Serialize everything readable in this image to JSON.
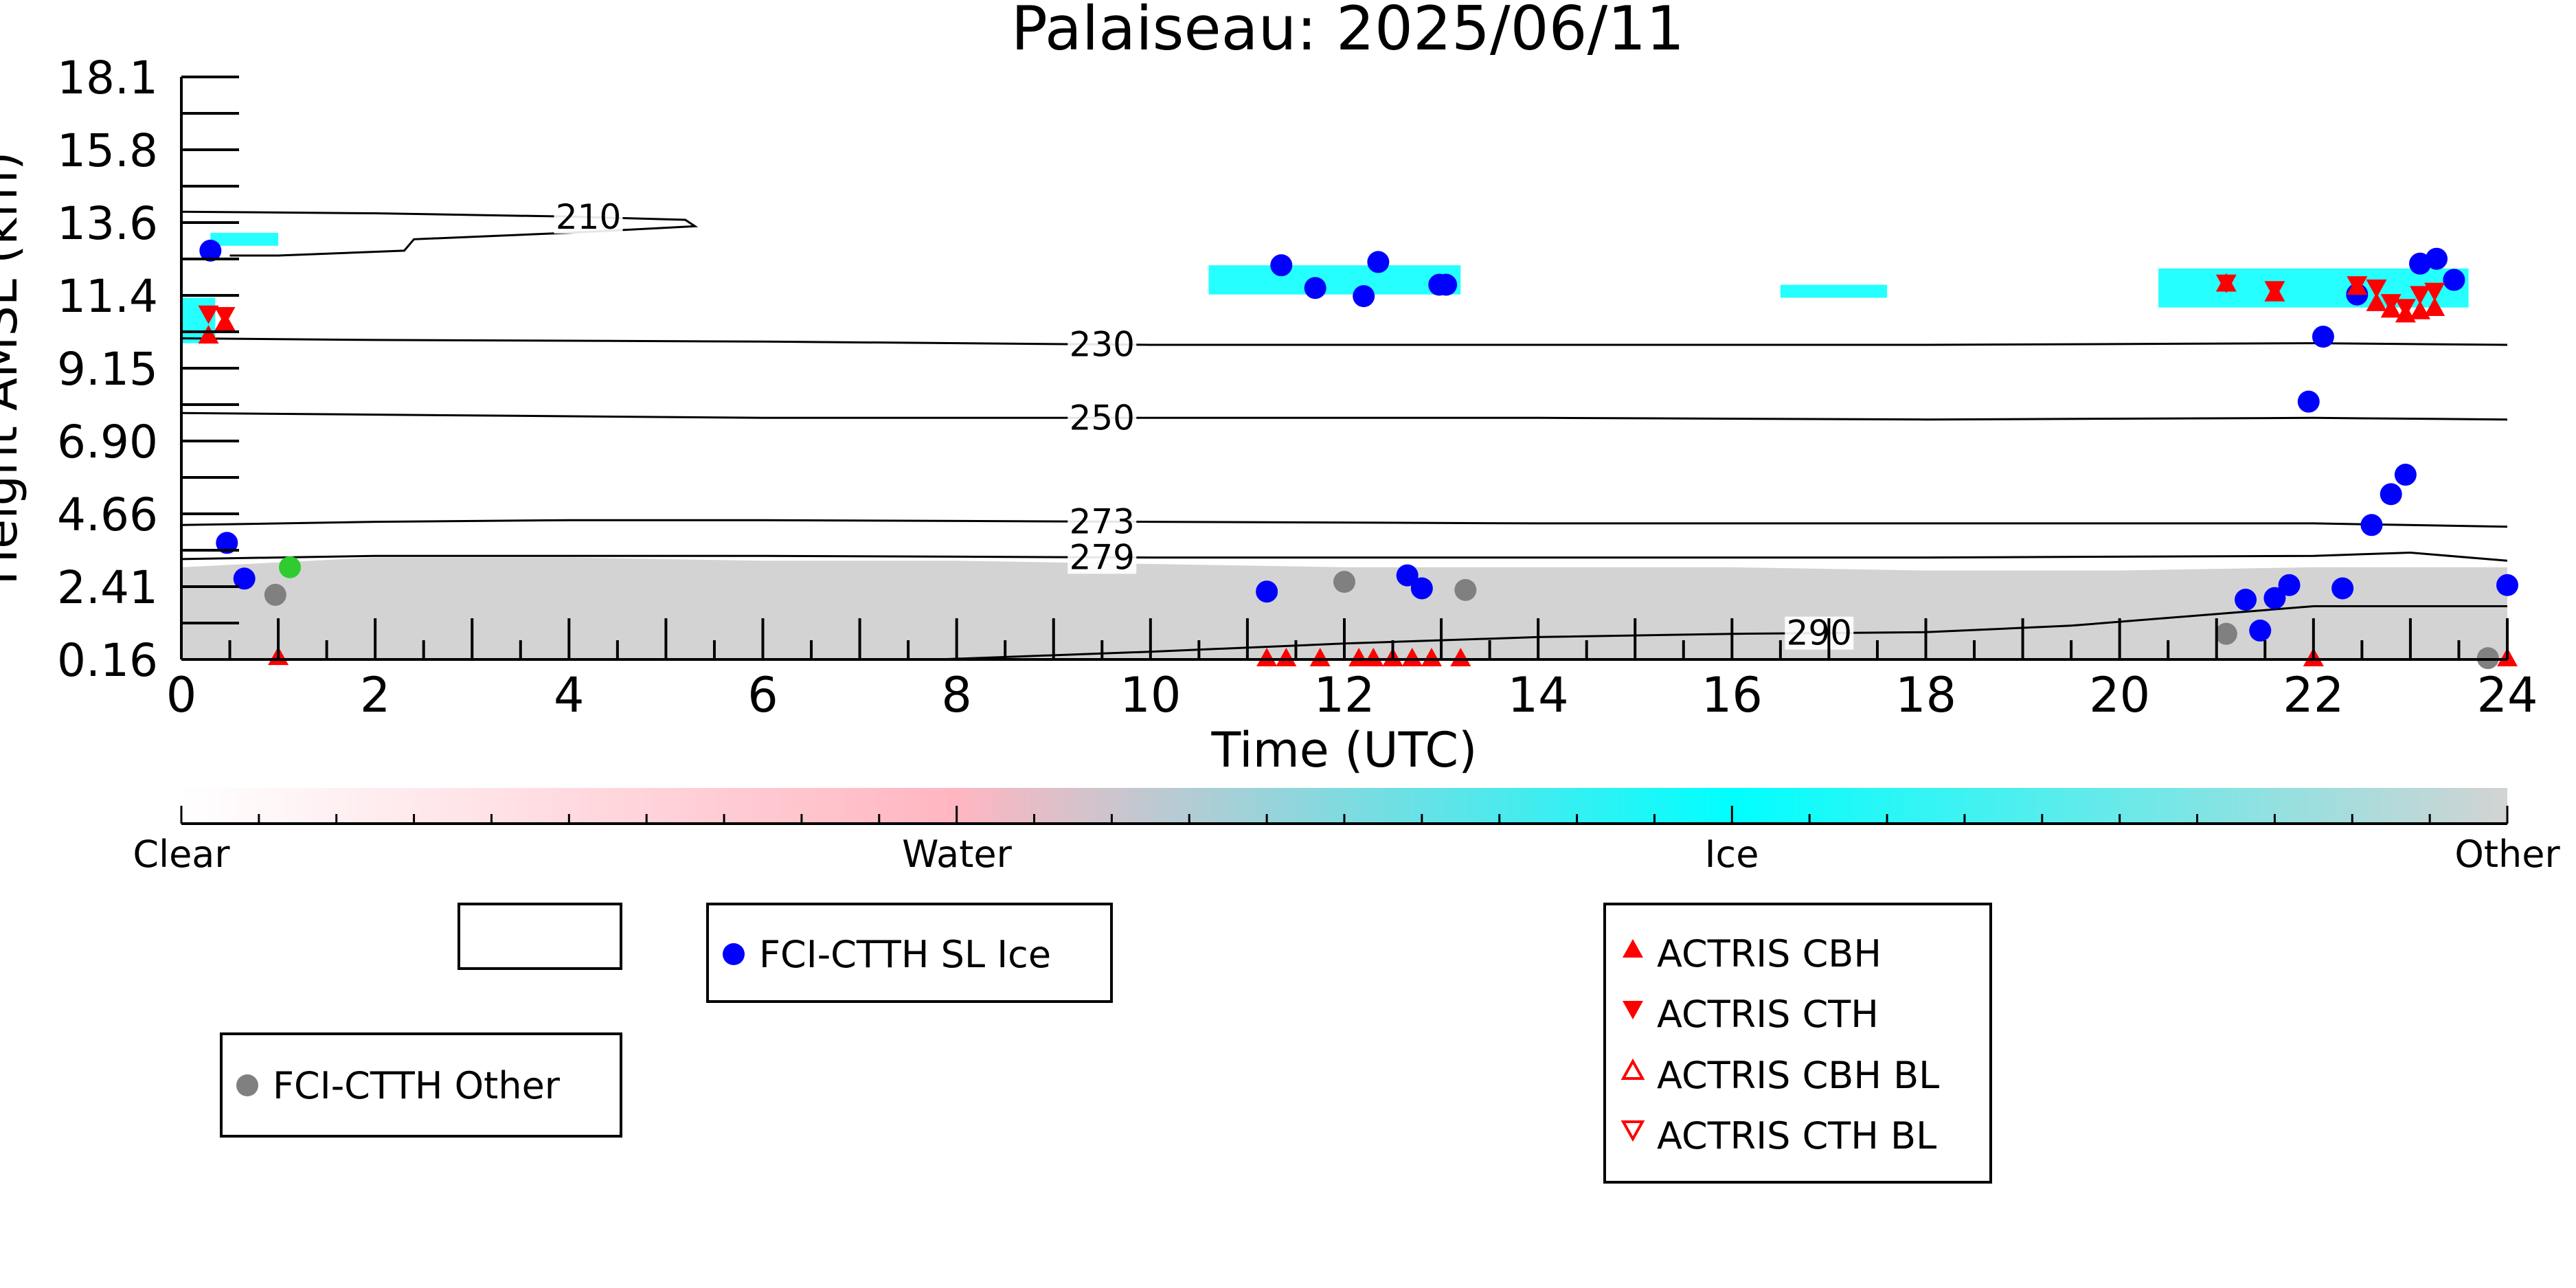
{
  "chart_data": {
    "type": "scatter",
    "title": "Palaiseau: 2025/06/11",
    "xlabel": "Time (UTC)",
    "ylabel": "Height AMSL (km)",
    "xlim": [
      0,
      24
    ],
    "ylim": [
      0.16,
      18.1
    ],
    "x_ticks": [
      "0",
      "2",
      "4",
      "6",
      "8",
      "10",
      "12",
      "14",
      "16",
      "18",
      "20",
      "22",
      "24"
    ],
    "y_ticks": [
      "0.16",
      "2.41",
      "4.66",
      "6.90",
      "9.15",
      "11.4",
      "13.6",
      "15.8",
      "18.1"
    ],
    "grid": false,
    "background": {
      "description_colors": {
        "clear": "#ffffff",
        "water": "#ffb6c1",
        "ice": "#00ffff",
        "other": "#d3d3d3"
      },
      "other_layer_top_km": [
        3.0,
        3.3,
        3.3,
        3.2,
        3.2,
        3.1,
        3.0,
        3.0,
        3.0,
        2.9,
        2.9,
        3.0,
        3.0
      ],
      "ice_patches": [
        {
          "x0": 0.0,
          "x1": 0.35,
          "y0": 9.9,
          "y1": 11.3
        },
        {
          "x0": 0.3,
          "x1": 1.0,
          "y0": 12.9,
          "y1": 13.3
        },
        {
          "x0": 10.6,
          "x1": 13.2,
          "y0": 11.4,
          "y1": 12.3
        },
        {
          "x0": 16.5,
          "x1": 17.6,
          "y0": 11.3,
          "y1": 11.7
        },
        {
          "x0": 20.4,
          "x1": 23.6,
          "y0": 11.0,
          "y1": 12.2
        }
      ]
    },
    "contours": [
      {
        "label": "210",
        "label_x": 4.2,
        "x": [
          0,
          2,
          4,
          5.2,
          5.3,
          4.0,
          2.4,
          2.3,
          1.0,
          0.5
        ],
        "y": [
          13.95,
          13.9,
          13.8,
          13.7,
          13.5,
          13.3,
          13.1,
          12.75,
          12.6,
          12.6
        ]
      },
      {
        "label": "230",
        "label_x": 9.5,
        "x": [
          0,
          2,
          6,
          10,
          14,
          18,
          22,
          24
        ],
        "y": [
          10.05,
          10.0,
          9.95,
          9.85,
          9.85,
          9.85,
          9.9,
          9.85
        ]
      },
      {
        "label": "250",
        "label_x": 9.5,
        "x": [
          0,
          2,
          6,
          10,
          14,
          18,
          22,
          24
        ],
        "y": [
          7.75,
          7.7,
          7.6,
          7.6,
          7.6,
          7.55,
          7.6,
          7.55
        ]
      },
      {
        "label": "273",
        "label_x": 9.5,
        "x": [
          0,
          2,
          4,
          6,
          10,
          14,
          18,
          22,
          24
        ],
        "y": [
          4.3,
          4.4,
          4.45,
          4.45,
          4.4,
          4.35,
          4.35,
          4.35,
          4.25
        ]
      },
      {
        "label": "279",
        "label_x": 9.5,
        "x": [
          0,
          2,
          4,
          6,
          10,
          14,
          18,
          22,
          23,
          24
        ],
        "y": [
          3.25,
          3.35,
          3.35,
          3.35,
          3.3,
          3.3,
          3.3,
          3.35,
          3.45,
          3.2
        ]
      },
      {
        "label": "290",
        "label_x": 16.9,
        "x": [
          7.8,
          10,
          12,
          14,
          16,
          18,
          19.5,
          22,
          24
        ],
        "y": [
          0.16,
          0.4,
          0.65,
          0.85,
          0.95,
          1.0,
          1.2,
          1.8,
          1.8
        ]
      }
    ],
    "series": [
      {
        "name": "FCI-CTTH SL Ice",
        "marker": "circle",
        "color": "#0000ff",
        "x": [
          0.3,
          0.47,
          0.65,
          11.2,
          11.35,
          11.7,
          12.2,
          12.35,
          12.65,
          12.8,
          12.98,
          13.05,
          21.3,
          21.45,
          21.6,
          21.75,
          21.95,
          22.1,
          22.3,
          22.45,
          22.6,
          22.8,
          22.95,
          23.1,
          23.27,
          23.45,
          24.0
        ],
        "y": [
          12.75,
          3.75,
          2.65,
          2.25,
          12.3,
          11.6,
          11.35,
          12.4,
          2.75,
          2.35,
          11.7,
          11.7,
          2.0,
          1.05,
          2.05,
          2.45,
          8.1,
          10.1,
          2.35,
          11.4,
          4.3,
          5.25,
          5.85,
          12.35,
          12.5,
          11.85,
          2.45
        ]
      },
      {
        "name": "FCI-CTTH Other",
        "marker": "circle",
        "color": "#808080",
        "x": [
          0.97,
          12.0,
          13.25,
          21.1,
          23.8
        ],
        "y": [
          2.15,
          2.55,
          2.3,
          0.95,
          0.2
        ]
      },
      {
        "name": "",
        "marker": "circle",
        "color": "#2ecc2e",
        "x": [
          1.12
        ],
        "y": [
          3.0
        ]
      },
      {
        "name": "ACTRIS CBH",
        "marker": "triangle-up",
        "color": "#ff0000",
        "x": [
          0.28,
          0.45,
          21.1,
          21.6,
          22.45,
          22.65,
          22.8,
          22.95,
          23.1,
          23.25
        ],
        "y": [
          10.1,
          10.5,
          11.7,
          11.4,
          11.6,
          11.1,
          10.9,
          10.75,
          10.85,
          10.95
        ]
      },
      {
        "name": "ACTRIS CTH",
        "marker": "triangle-down",
        "color": "#ff0000",
        "x": [
          0.28,
          0.45,
          21.1,
          21.6,
          22.45,
          22.65,
          22.8,
          22.95,
          23.1,
          23.25
        ],
        "y": [
          10.85,
          10.8,
          11.8,
          11.6,
          11.75,
          11.65,
          11.2,
          11.05,
          11.45,
          11.55
        ]
      },
      {
        "name": "",
        "marker": "triangle-up",
        "color": "#ff0000",
        "x": [
          1.0,
          11.2,
          11.4,
          11.75,
          12.15,
          12.3,
          12.5,
          12.7,
          12.9,
          13.2,
          22.0,
          24.0
        ],
        "y": [
          0.2,
          0.16,
          0.16,
          0.16,
          0.16,
          0.16,
          0.16,
          0.16,
          0.16,
          0.16,
          0.16,
          0.16
        ]
      }
    ],
    "colorbar": {
      "stops": [
        {
          "pos": 0.0,
          "color": "#ffffff"
        },
        {
          "pos": 0.333,
          "color": "#ffb6c1"
        },
        {
          "pos": 0.667,
          "color": "#00ffff"
        },
        {
          "pos": 1.0,
          "color": "#d3d3d3"
        }
      ],
      "labels": [
        "Clear",
        "Water",
        "Ice",
        "Other"
      ]
    },
    "legends": {
      "fci_sl_ice": "FCI-CTTH SL Ice",
      "fci_other": "FCI-CTTH Other",
      "actris": [
        "ACTRIS CBH",
        "ACTRIS CTH",
        "ACTRIS CBH BL",
        "ACTRIS CTH BL"
      ]
    }
  }
}
